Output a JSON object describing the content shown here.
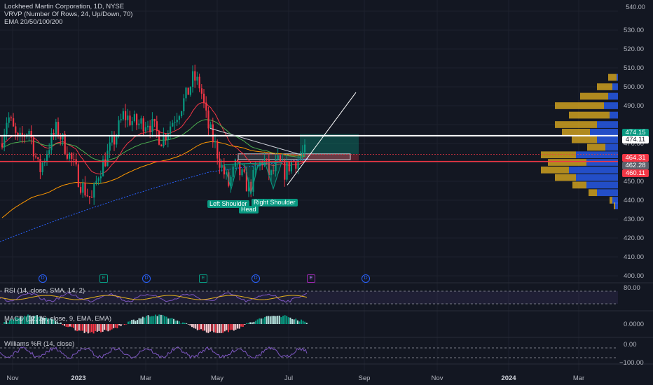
{
  "legend": {
    "title": "Lockheed Martin Corporation, 1D, NYSE",
    "vrvp": "VRVP (Number Of Rows, 24, Up/Down, 70)",
    "ema": "EMA 20/50/100/200"
  },
  "top_right_value": "540.00",
  "price_axis": [
    "530.00",
    "520.00",
    "510.00",
    "500.00",
    "490.00",
    "470.00",
    "460.00",
    "450.00",
    "440.00",
    "430.00",
    "420.00",
    "410.00",
    "400.00"
  ],
  "price_tags": [
    {
      "name": "ema-tag-474-15",
      "label": "474.15",
      "bg": "#089981",
      "fg": "#ffffff"
    },
    {
      "name": "level-tag-474-11",
      "label": "474.11",
      "bg": "#ffffff",
      "fg": "#131722"
    },
    {
      "name": "price-tag-464-31",
      "label": "464.31",
      "bg": "#f23645",
      "fg": "#ffffff"
    },
    {
      "name": "price-tag-462-28",
      "label": "462.28",
      "bg": "#5d606b",
      "fg": "#ffffff"
    },
    {
      "name": "price-tag-460-11",
      "label": "460.11",
      "bg": "#f23645",
      "fg": "#ffffff"
    }
  ],
  "patterns": {
    "left_shoulder": "Left Shoulder",
    "head": "Head",
    "right_shoulder": "Right Shoulder"
  },
  "events": [
    {
      "kind": "dividend",
      "glyph": "D"
    },
    {
      "kind": "earnings",
      "glyph": "E"
    },
    {
      "kind": "dividend",
      "glyph": "D"
    },
    {
      "kind": "earnings",
      "glyph": "E"
    },
    {
      "kind": "dividend",
      "glyph": "D"
    },
    {
      "kind": "earnings",
      "glyph": "E"
    },
    {
      "kind": "dividend",
      "glyph": "D"
    }
  ],
  "rsi": {
    "title": "RSI (14, close, SMA, 14, 2)",
    "axis": "80.00"
  },
  "macd": {
    "title": "MACD (12, 26, close, 9, EMA, EMA)",
    "axis": "0.0000"
  },
  "williams": {
    "title": "Williams %R (14, close)",
    "axis_top": "0.00",
    "axis_bottom": "−100.00"
  },
  "time_axis": [
    {
      "label": "Nov",
      "bold": false
    },
    {
      "label": "2023",
      "bold": true
    },
    {
      "label": "Mar",
      "bold": false
    },
    {
      "label": "May",
      "bold": false
    },
    {
      "label": "Jul",
      "bold": false
    },
    {
      "label": "Sep",
      "bold": false
    },
    {
      "label": "Nov",
      "bold": false
    },
    {
      "label": "2024",
      "bold": true
    },
    {
      "label": "Mar",
      "bold": false
    }
  ],
  "colors": {
    "up": "#089981",
    "down": "#f23645",
    "background": "#131722",
    "ema20": "#f23645",
    "ema50": "#4caf50",
    "ema100": "#ff9800",
    "ema200": "#2962ff",
    "vp_up": "#2962ff",
    "vp_down": "#e5b21f"
  },
  "icons": {
    "settings": "gear-icon"
  }
}
